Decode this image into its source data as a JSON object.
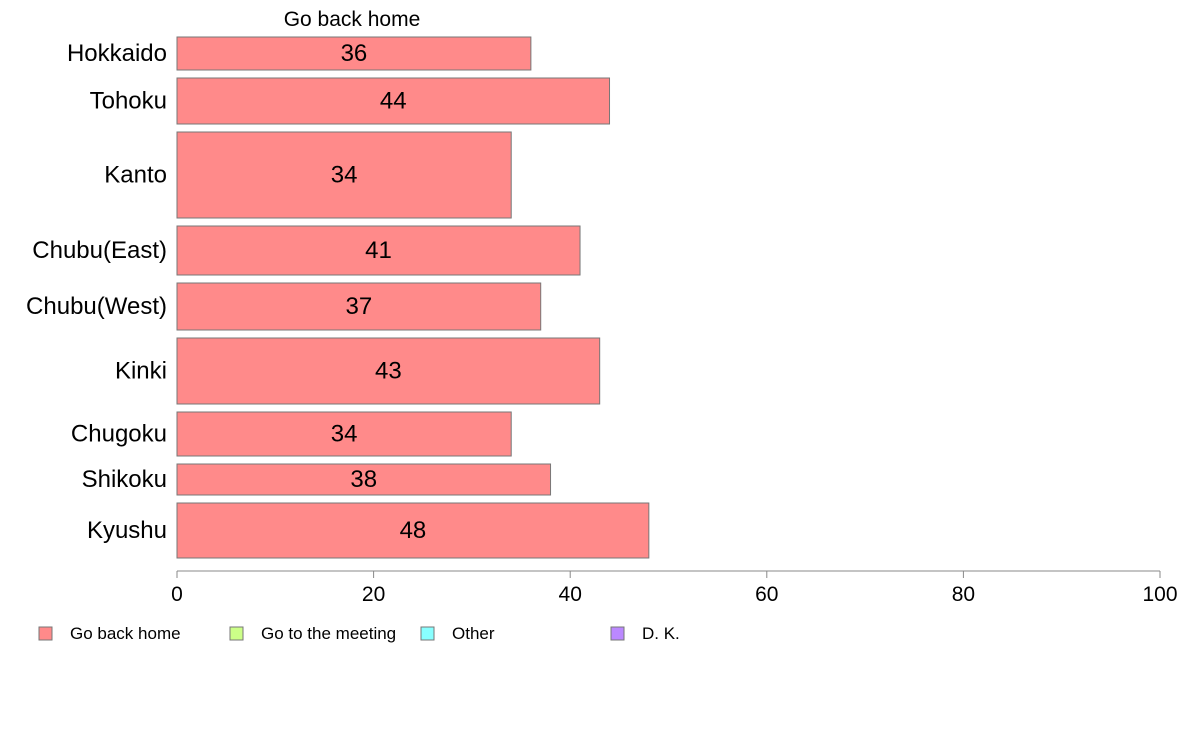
{
  "chart_data": {
    "type": "bar",
    "orientation": "horizontal",
    "title": "Go back home",
    "categories": [
      "Hokkaido",
      "Tohoku",
      "Kanto",
      "Chubu(East)",
      "Chubu(West)",
      "Kinki",
      "Chugoku",
      "Shikoku",
      "Kyushu"
    ],
    "series": [
      {
        "name": "Go back home",
        "values": [
          36,
          44,
          34,
          41,
          37,
          43,
          34,
          38,
          48
        ],
        "color": "#ff8a8a"
      }
    ],
    "xlim": [
      0,
      100
    ],
    "xticks": [
      "0",
      "20",
      "40",
      "60",
      "80",
      "100"
    ],
    "grid": false,
    "legend": {
      "placement": "bottom-left",
      "items": [
        {
          "label": "Go back home",
          "color": "#ff8a8a"
        },
        {
          "label": "Go to the meeting",
          "color": "#ccff88"
        },
        {
          "label": "Other",
          "color": "#88ffff"
        },
        {
          "label": "D. K.",
          "color": "#bb88ff"
        }
      ]
    }
  }
}
